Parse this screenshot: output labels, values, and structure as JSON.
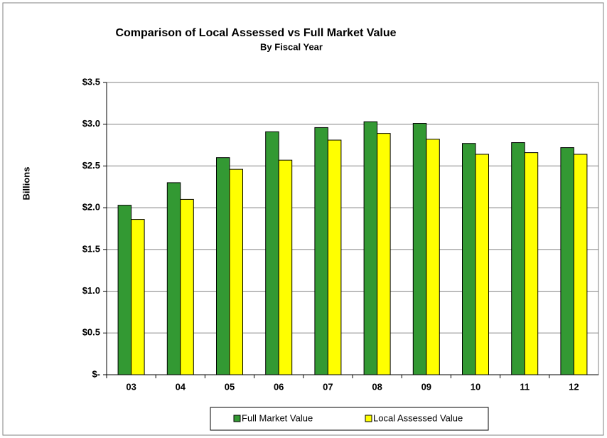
{
  "chart_data": {
    "type": "bar",
    "title": "Comparison of Local Assessed vs Full Market Value",
    "subtitle": "By Fiscal Year",
    "y_label": "Billions",
    "categories": [
      "03",
      "04",
      "05",
      "06",
      "07",
      "08",
      "09",
      "10",
      "11",
      "12"
    ],
    "series": [
      {
        "name": "Full Market Value",
        "color": "#339933",
        "values": [
          2.03,
          2.3,
          2.6,
          2.91,
          2.96,
          3.03,
          3.01,
          2.77,
          2.78,
          2.72
        ]
      },
      {
        "name": "Local Assessed Value",
        "color": "#ffff00",
        "values": [
          1.86,
          2.1,
          2.46,
          2.57,
          2.81,
          2.89,
          2.82,
          2.64,
          2.66,
          2.64
        ]
      }
    ],
    "ylim": [
      0,
      3.5
    ],
    "yticks": [
      {
        "value": 0,
        "label": "$-"
      },
      {
        "value": 0.5,
        "label": "$0.5"
      },
      {
        "value": 1,
        "label": "$1.0"
      },
      {
        "value": 1.5,
        "label": "$1.5"
      },
      {
        "value": 2,
        "label": "$2.0"
      },
      {
        "value": 2.5,
        "label": "$2.5"
      },
      {
        "value": 3,
        "label": "$3.0"
      },
      {
        "value": 3.5,
        "label": "$3.5"
      }
    ],
    "grid": true,
    "legend": "bottom"
  }
}
